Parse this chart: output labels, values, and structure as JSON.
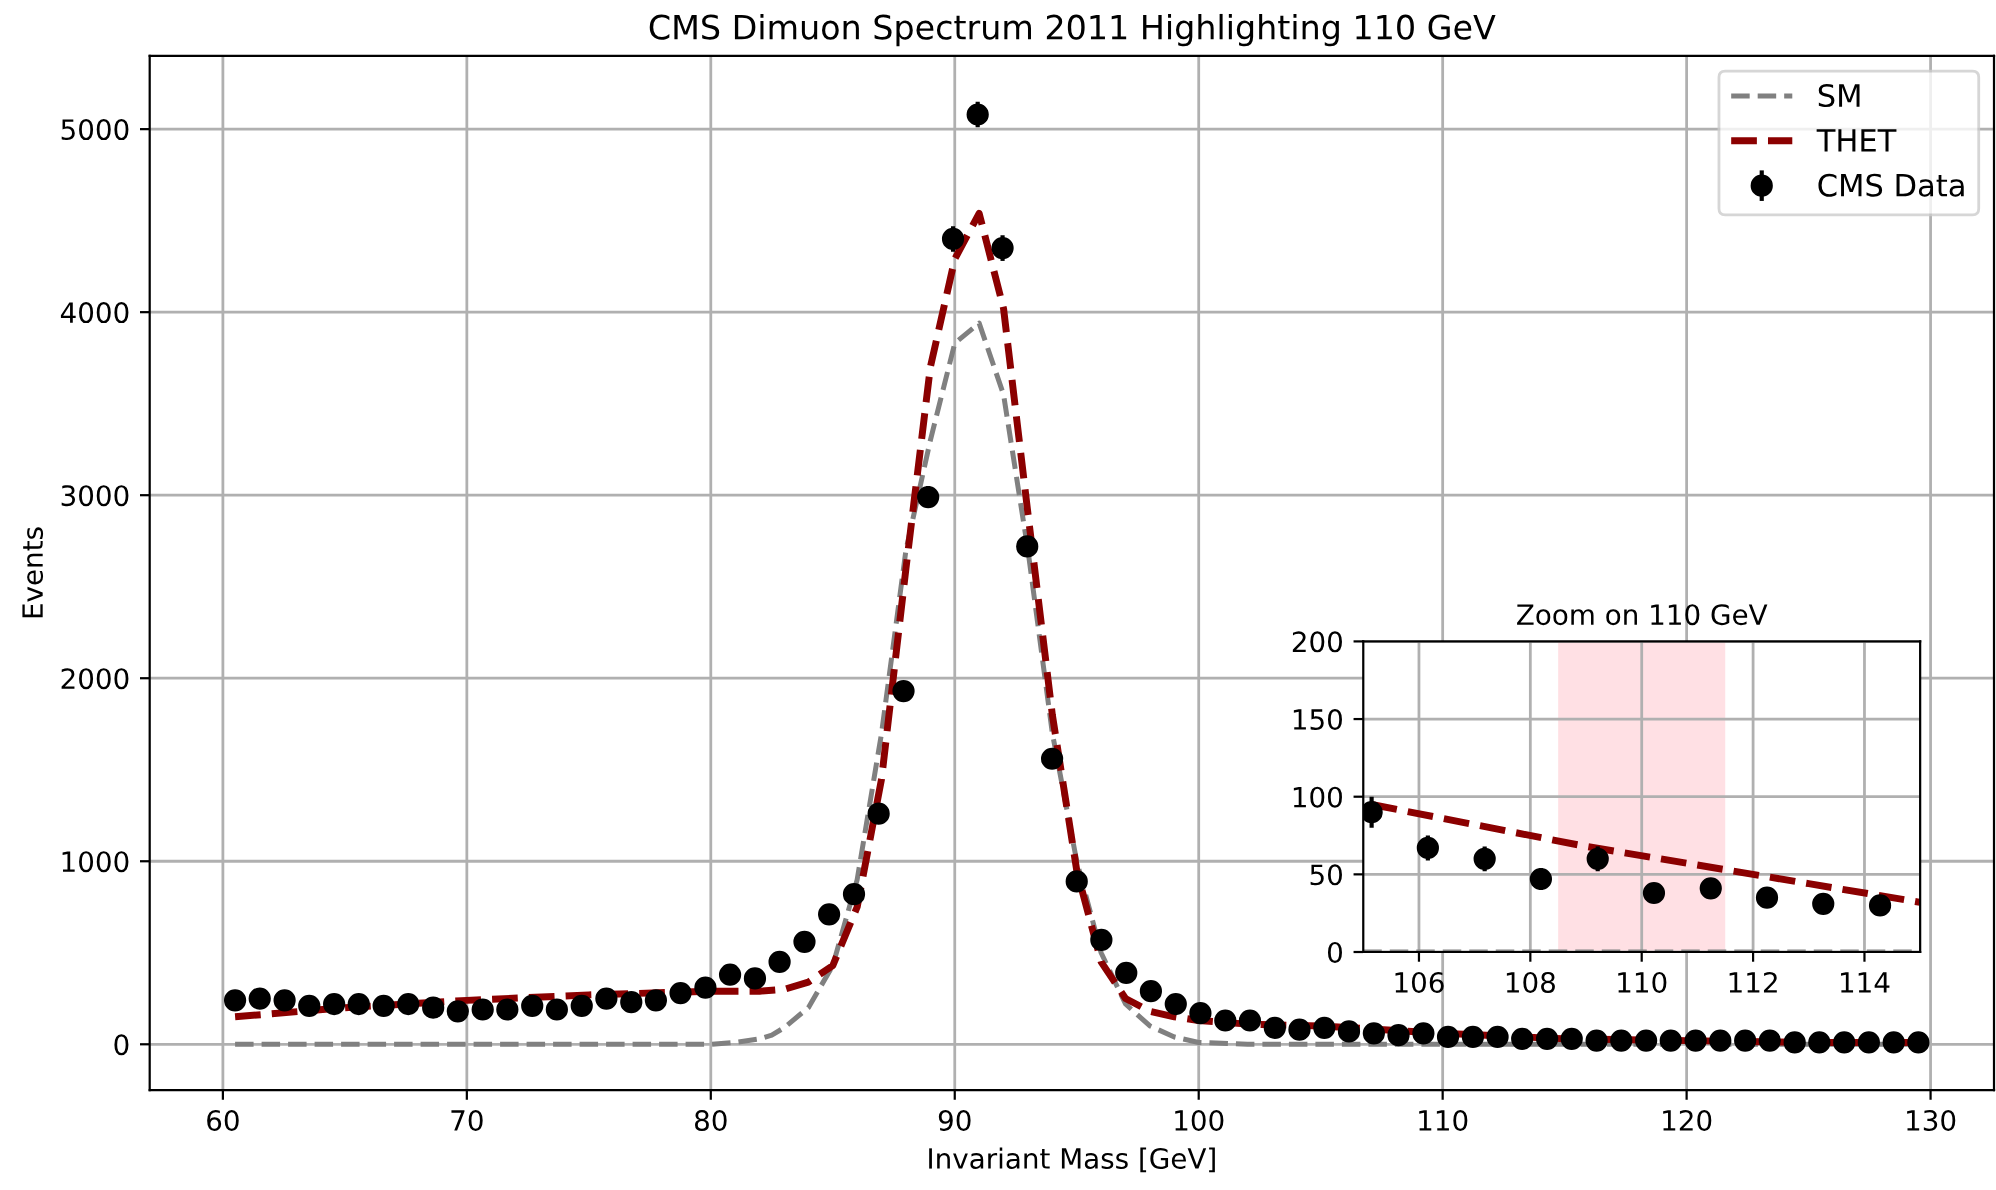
{
  "chart_data": [
    {
      "type": "scatter",
      "title": "CMS Dimuon Spectrum 2011 Highlighting 110 GeV",
      "xlabel": "Invariant Mass [GeV]",
      "ylabel": "Events",
      "xlim": [
        57,
        132.6
      ],
      "ylim": [
        -250,
        5400
      ],
      "xticks": [
        60,
        70,
        80,
        90,
        100,
        110,
        120,
        130
      ],
      "yticks": [
        0,
        1000,
        2000,
        3000,
        4000,
        5000
      ],
      "grid": true,
      "legend": "top right",
      "series": [
        {
          "name": "SM",
          "type": "line",
          "color": "#808080",
          "line_style": "dashed",
          "x": [
            60.5,
            70,
            80,
            81,
            82,
            82.5,
            83,
            84,
            85,
            86,
            87,
            88,
            89,
            90,
            91,
            92,
            93,
            94,
            95,
            96,
            97,
            98,
            99,
            100,
            102,
            110,
            120,
            129.5
          ],
          "values": [
            0,
            0,
            0,
            10,
            30,
            50,
            90,
            200,
            430,
            900,
            1700,
            2700,
            3300,
            3830,
            3940,
            3550,
            2700,
            1700,
            1000,
            500,
            220,
            100,
            40,
            10,
            0,
            0,
            0,
            0
          ]
        },
        {
          "name": "THET",
          "type": "line",
          "color": "#8b0000",
          "line_style": "dashed",
          "x": [
            60.5,
            65,
            70,
            75,
            80,
            82,
            83,
            84,
            85,
            86,
            87,
            88,
            89,
            90,
            91,
            92,
            93,
            94,
            95,
            96,
            97,
            98,
            99,
            100,
            102,
            105,
            110,
            115,
            120,
            125,
            129.5
          ],
          "values": [
            150,
            200,
            240,
            270,
            290,
            290,
            300,
            340,
            430,
            750,
            1450,
            2600,
            3700,
            4290,
            4540,
            4020,
            2900,
            1800,
            950,
            450,
            250,
            180,
            150,
            130,
            110,
            100,
            60,
            30,
            20,
            10,
            10
          ]
        },
        {
          "name": "CMS Data",
          "type": "scatter",
          "color": "#000000",
          "marker": "circle",
          "x": [
            60.5,
            61.51,
            62.53,
            63.54,
            64.56,
            65.57,
            66.59,
            67.6,
            68.62,
            69.63,
            70.65,
            71.66,
            72.68,
            73.69,
            74.71,
            75.72,
            76.74,
            77.75,
            78.76,
            79.78,
            80.79,
            81.81,
            82.82,
            83.84,
            84.85,
            85.87,
            86.88,
            87.9,
            88.91,
            89.93,
            90.94,
            91.96,
            92.97,
            93.99,
            95.0,
            96.01,
            97.03,
            98.04,
            99.06,
            100.07,
            101.09,
            102.1,
            103.12,
            104.13,
            105.15,
            106.16,
            107.18,
            108.19,
            109.21,
            110.22,
            111.24,
            112.25,
            113.26,
            114.28,
            115.29,
            116.31,
            117.32,
            118.34,
            119.35,
            120.37,
            121.38,
            122.4,
            123.41,
            124.43,
            125.44,
            126.46,
            127.47,
            128.49,
            129.5
          ],
          "values": [
            240,
            250,
            240,
            210,
            220,
            220,
            210,
            220,
            200,
            180,
            190,
            190,
            210,
            190,
            210,
            250,
            230,
            240,
            280,
            310,
            380,
            360,
            450,
            560,
            710,
            820,
            1260,
            1930,
            2990,
            4400,
            5080,
            4350,
            2720,
            1560,
            890,
            570,
            390,
            290,
            220,
            170,
            130,
            130,
            90,
            80,
            90,
            70,
            60,
            50,
            60,
            40,
            40,
            40,
            30,
            30,
            30,
            20,
            20,
            20,
            20,
            20,
            20,
            20,
            20,
            10,
            10,
            10,
            10,
            10,
            10
          ],
          "errors": [
            null,
            null,
            null,
            null,
            null,
            null,
            null,
            null,
            null,
            null,
            null,
            null,
            null,
            null,
            null,
            null,
            null,
            null,
            null,
            null,
            null,
            null,
            null,
            null,
            null,
            null,
            null,
            null,
            60,
            70,
            70,
            70,
            50,
            null,
            null,
            null,
            null,
            null,
            null,
            null,
            null,
            null,
            null,
            null,
            null,
            null,
            null,
            null,
            null,
            null,
            null,
            null,
            null,
            null,
            null,
            null,
            null,
            null,
            null,
            null,
            null,
            null,
            null,
            null,
            null,
            null,
            null,
            null,
            null
          ]
        }
      ]
    },
    {
      "type": "scatter",
      "title": "Zoom on 110 GeV",
      "xlim": [
        105,
        115
      ],
      "ylim": [
        0,
        200
      ],
      "xticks": [
        106,
        108,
        110,
        112,
        114
      ],
      "yticks": [
        0,
        50,
        100,
        150,
        200
      ],
      "grid": true,
      "bands": [
        {
          "axis": "x",
          "from": 108.5,
          "to": 111.5,
          "color": "#ffe0e4"
        }
      ],
      "series": [
        {
          "type": "line",
          "color": "#808080",
          "line_style": "dashed",
          "x": [
            105,
            115
          ],
          "values": [
            0,
            0
          ]
        },
        {
          "type": "line",
          "color": "#8b0000",
          "line_style": "dashed",
          "x": [
            105.15,
            107,
            109,
            111,
            113,
            115
          ],
          "values": [
            95,
            82,
            68,
            56,
            44,
            32
          ]
        },
        {
          "type": "scatter",
          "color": "#000000",
          "marker": "circle",
          "x": [
            105.15,
            106.16,
            107.18,
            108.19,
            109.21,
            110.22,
            111.24,
            112.25,
            113.26,
            114.28
          ],
          "values": [
            90,
            67,
            60,
            47,
            60,
            38,
            41,
            35,
            31,
            30
          ],
          "errors": [
            10,
            8,
            8,
            7,
            8,
            6,
            6,
            6,
            6,
            5
          ]
        }
      ]
    }
  ]
}
